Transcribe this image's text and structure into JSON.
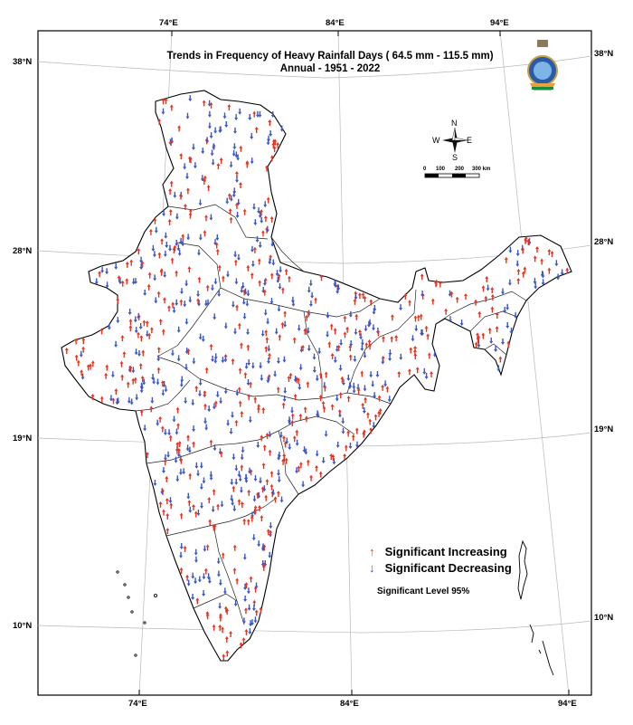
{
  "title": {
    "line1": "Trends in Frequency of Heavy Rainfall Days ( 64.5 mm - 115.5 mm)",
    "line2": "Annual - 1951 - 2022"
  },
  "axes": {
    "top_lon": [
      "74°E",
      "84°E",
      "94°E"
    ],
    "bottom_lon": [
      "74°E",
      "84°E",
      "94°E"
    ],
    "left_lat": [
      "38°N",
      "28°N",
      "19°N",
      "10°N"
    ],
    "right_lat": [
      "38°N",
      "28°N",
      "19°N",
      "10°N"
    ]
  },
  "compass": {
    "n": "N",
    "s": "S",
    "e": "E",
    "w": "W"
  },
  "scale_bar": {
    "labels": [
      "0",
      "100",
      "200",
      "300 km"
    ]
  },
  "legend": {
    "increasing": {
      "symbol": "↑",
      "label": "Significant Increasing",
      "color": "#e8321e"
    },
    "decreasing": {
      "symbol": "↓",
      "label": "Significant Decreasing",
      "color": "#3a55c8"
    },
    "significance": "Significant Level 95%"
  },
  "colors": {
    "increasing": "#e8321e",
    "decreasing": "#3a55c8",
    "boundary": "#000000",
    "graticule": "#b8b8b8"
  },
  "icons": {
    "emblem": "imd-logo-icon"
  }
}
